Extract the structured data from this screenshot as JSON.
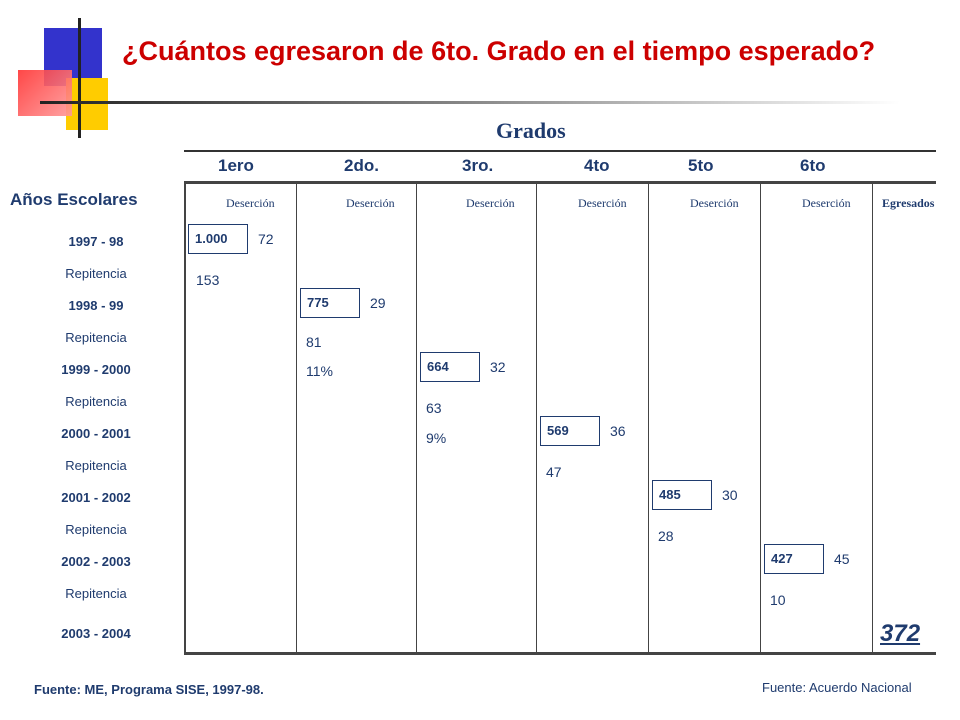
{
  "title": "¿Cuántos egresaron de 6to. Grado en el tiempo esperado?",
  "header": {
    "grados_label": "Grados",
    "anos_label": "Años Escolares"
  },
  "grades": [
    "1ero",
    "2do.",
    "3ro.",
    "4to",
    "5to",
    "6to"
  ],
  "column_headers": {
    "desercion": [
      "Deserción",
      "Deserción",
      "Deserción",
      "Deserción",
      "Deserción",
      "Deserción"
    ],
    "egresados": "Egresados"
  },
  "rows": {
    "years": [
      "1997 - 98",
      "1998 - 99",
      "1999 - 2000",
      "2000 - 2001",
      "2001 - 2002",
      "2002 - 2003",
      "2003 - 2004"
    ],
    "repitencia": [
      "Repitencia",
      "Repitencia",
      "Repitencia",
      "Repitencia",
      "Repitencia",
      "Repitencia"
    ]
  },
  "cohort": [
    {
      "enrolled": "1.000",
      "desercion": "72",
      "repitencia": "153",
      "repitencia_pct": ""
    },
    {
      "enrolled": "775",
      "desercion": "29",
      "repitencia": "81",
      "repitencia_pct": "11%"
    },
    {
      "enrolled": "664",
      "desercion": "32",
      "repitencia": "63",
      "repitencia_pct": "9%"
    },
    {
      "enrolled": "569",
      "desercion": "36",
      "repitencia": "47",
      "repitencia_pct": ""
    },
    {
      "enrolled": "485",
      "desercion": "30",
      "repitencia": "28",
      "repitencia_pct": ""
    },
    {
      "enrolled": "427",
      "desercion": "45",
      "repitencia": "10",
      "repitencia_pct": ""
    }
  ],
  "egresados_total": "372",
  "sources": {
    "left": "Fuente: ME, Programa SISE, 1997-98.",
    "right": "Fuente: Acuerdo Nacional"
  },
  "colors": {
    "title": "#cc0000",
    "text": "#1f3b6e",
    "logo_blue": "#3333cc",
    "logo_yellow": "#ffcc00",
    "logo_red": "#ff3333"
  }
}
